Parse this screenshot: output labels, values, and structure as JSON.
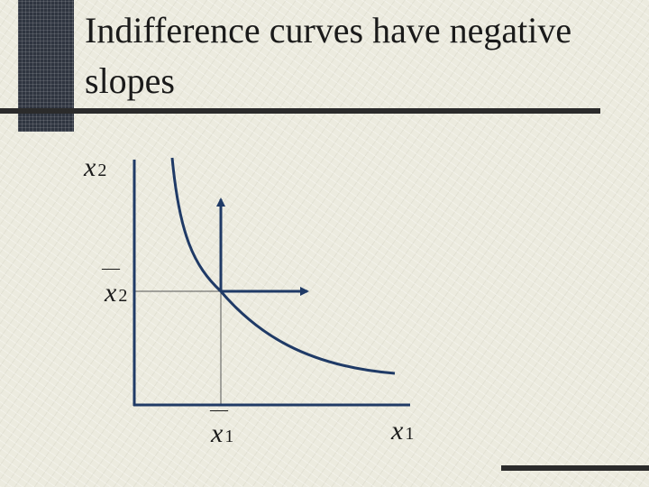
{
  "slide": {
    "title": "Indifference curves have negative slopes"
  },
  "diagram": {
    "y_axis_label": {
      "var": "x",
      "sub": "2"
    },
    "x_axis_label": {
      "var": "x",
      "sub": "1"
    },
    "y_marker_label": {
      "bar": "—",
      "var": "x",
      "sub": "2"
    },
    "x_marker_label": {
      "bar": "—",
      "var": "x",
      "sub": "1"
    },
    "colors": {
      "curve": "#1f3a66",
      "axes": "#1f3a66",
      "guides": "#555555",
      "arrows": "#1f3a66"
    }
  }
}
